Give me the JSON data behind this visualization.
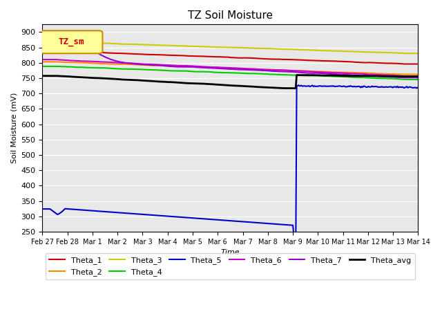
{
  "title": "TZ Soil Moisture",
  "xlabel": "Time",
  "ylabel": "Soil Moisture (mV)",
  "ylim": [
    250,
    925
  ],
  "yticks": [
    250,
    300,
    350,
    400,
    450,
    500,
    550,
    600,
    650,
    700,
    750,
    800,
    850,
    900
  ],
  "background_color": "#e8e8e8",
  "legend_label": "TZ_sm",
  "series": {
    "Theta_1": {
      "color": "#cc0000"
    },
    "Theta_2": {
      "color": "#ff8800"
    },
    "Theta_3": {
      "color": "#cccc00"
    },
    "Theta_4": {
      "color": "#00cc00"
    },
    "Theta_5": {
      "color": "#0000cc"
    },
    "Theta_6": {
      "color": "#cc00cc"
    },
    "Theta_7": {
      "color": "#9900cc"
    },
    "Theta_avg": {
      "color": "#000000"
    }
  },
  "x_tick_labels": [
    "Feb 27",
    "Feb 28",
    "Mar 1",
    "Mar 2",
    "Mar 3",
    "Mar 4",
    "Mar 5",
    "Mar 6",
    "Mar 7",
    "Mar 8",
    "Mar 9",
    "Mar 10",
    "Mar 11",
    "Mar 12",
    "Mar 13",
    "Mar 14"
  ],
  "n_points": 400,
  "drop_index": 270
}
